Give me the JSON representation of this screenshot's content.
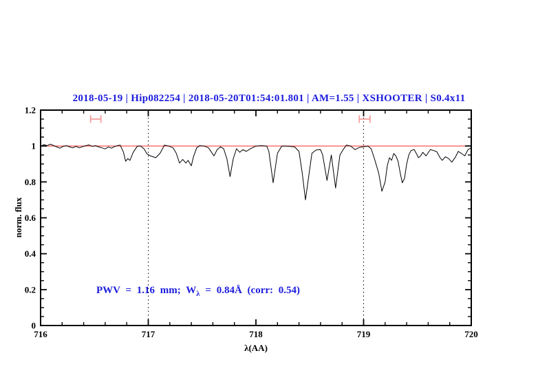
{
  "colors": {
    "title_blue": "#1c1cdd",
    "annotation_blue": "#1c1cdd",
    "continuum_red": "#ff6464",
    "band_marker_red": "#f59e9e",
    "spectrum_black": "#000000"
  },
  "chart_data": {
    "type": "line",
    "title": "2018-05-19 | Hip082254 | 2018-05-20T01:54:01.801 | AM=1.55 | XSHOOTER | S0.4x11",
    "xlabel": "λ(AA)",
    "ylabel": "norm. flux",
    "xlim": [
      716,
      720
    ],
    "ylim": [
      0,
      1.2
    ],
    "grid": "off",
    "legend": "none",
    "x_major_ticks": [
      716,
      717,
      718,
      719,
      720
    ],
    "x_tick_labels": [
      "716",
      "717",
      "718",
      "719",
      "720"
    ],
    "x_minor_step": 0.2,
    "y_major_ticks": [
      0,
      0.2,
      0.4,
      0.6,
      0.8,
      1,
      1.2
    ],
    "y_tick_labels": [
      "0",
      "0.2",
      "0.4",
      "0.6",
      "0.8",
      "1",
      "1.2"
    ],
    "y_minor_step": 0.05,
    "dotted_vlines": [
      717,
      719
    ],
    "continuum_line": {
      "y": 1.0
    },
    "band_markers": [
      {
        "x_min": 716.465,
        "x_max": 716.56,
        "y": 1.15
      },
      {
        "x_min": 718.96,
        "x_max": 719.06,
        "y": 1.15
      }
    ],
    "annotation": {
      "pre": "PWV = 1.16 mm; W",
      "sub": "λ",
      "post": " = 0.84Å (corr: 0.54)",
      "x": 716.52,
      "y": 0.19
    },
    "series": [
      {
        "name": "telluric-spectrum",
        "x": [
          716.0,
          716.03,
          716.06,
          716.09,
          716.12,
          716.15,
          716.18,
          716.21,
          716.24,
          716.27,
          716.3,
          716.33,
          716.36,
          716.39,
          716.42,
          716.45,
          716.48,
          716.51,
          716.54,
          716.57,
          716.6,
          716.63,
          716.66,
          716.69,
          716.72,
          716.74,
          716.77,
          716.79,
          716.81,
          716.83,
          716.86,
          716.9,
          716.93,
          716.96,
          716.99,
          717.02,
          717.07,
          717.11,
          717.15,
          717.19,
          717.23,
          717.26,
          717.29,
          717.32,
          717.35,
          717.37,
          717.4,
          717.42,
          717.45,
          717.48,
          717.52,
          717.56,
          717.61,
          717.64,
          717.67,
          717.7,
          717.73,
          717.76,
          717.79,
          717.82,
          717.85,
          717.88,
          717.91,
          717.95,
          718.0,
          718.05,
          718.1,
          718.12,
          718.16,
          718.2,
          718.24,
          718.28,
          718.32,
          718.36,
          718.4,
          718.43,
          718.46,
          718.49,
          718.52,
          718.56,
          718.6,
          718.62,
          718.66,
          718.7,
          718.74,
          718.78,
          718.81,
          718.84,
          718.88,
          718.92,
          718.96,
          719.0,
          719.04,
          719.07,
          719.1,
          719.14,
          719.17,
          719.2,
          719.22,
          719.24,
          719.26,
          719.28,
          719.3,
          719.32,
          719.34,
          719.36,
          719.38,
          719.4,
          719.42,
          719.44,
          719.47,
          719.49,
          719.51,
          719.53,
          719.55,
          719.58,
          719.62,
          719.65,
          719.68,
          719.71,
          719.73,
          719.76,
          719.79,
          719.82,
          719.85,
          719.88,
          719.91,
          719.94,
          719.97,
          720.0
        ],
        "y": [
          0.998,
          1.008,
          1.002,
          1.01,
          1.003,
          0.995,
          0.988,
          0.998,
          1.002,
          0.995,
          0.99,
          0.998,
          0.99,
          0.996,
          1.002,
          1.006,
          0.998,
          1.002,
          0.995,
          0.99,
          0.984,
          0.994,
          0.988,
          0.998,
          1.003,
          1.005,
          0.965,
          0.915,
          0.93,
          0.92,
          0.965,
          1.0,
          1.0,
          0.985,
          0.955,
          0.945,
          0.935,
          0.96,
          1.005,
          1.0,
          0.99,
          0.96,
          0.905,
          0.925,
          0.905,
          0.92,
          0.89,
          0.94,
          0.99,
          1.002,
          1.0,
          0.99,
          0.945,
          0.98,
          0.995,
          0.985,
          0.93,
          0.83,
          0.93,
          0.985,
          0.965,
          0.98,
          0.97,
          0.985,
          1.0,
          1.002,
          1.0,
          0.97,
          0.795,
          0.96,
          1.0,
          1.0,
          0.998,
          0.995,
          0.97,
          0.85,
          0.7,
          0.83,
          0.96,
          0.978,
          0.98,
          0.95,
          0.808,
          0.95,
          0.766,
          0.95,
          0.98,
          1.005,
          1.0,
          0.98,
          0.992,
          0.996,
          1.0,
          0.985,
          0.93,
          0.85,
          0.748,
          0.8,
          0.89,
          0.935,
          0.92,
          0.958,
          0.945,
          0.915,
          0.85,
          0.795,
          0.82,
          0.9,
          0.95,
          0.975,
          0.98,
          0.958,
          0.935,
          0.945,
          0.965,
          0.945,
          0.98,
          0.975,
          0.968,
          0.935,
          0.92,
          0.94,
          0.93,
          0.91,
          0.935,
          0.97,
          0.958,
          0.945,
          0.98,
          0.99
        ]
      }
    ]
  }
}
